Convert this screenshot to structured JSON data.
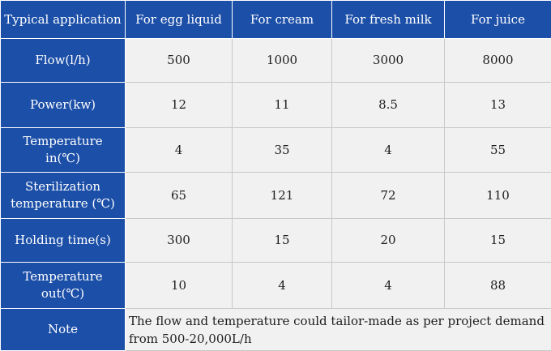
{
  "table": {
    "header": {
      "label": "Typical application",
      "columns": [
        "For egg liquid",
        "For cream",
        "For fresh milk",
        "For juice"
      ]
    },
    "rows": [
      {
        "label": "Flow(l/h)",
        "values": [
          "500",
          "1000",
          "3000",
          "8000"
        ]
      },
      {
        "label": "Power(kw)",
        "values": [
          "12",
          "11",
          "8.5",
          "13"
        ]
      },
      {
        "label": "Temperature in(℃)",
        "values": [
          "4",
          "35",
          "4",
          "55"
        ]
      },
      {
        "label_lines": [
          "Sterilization",
          "temperature (℃)"
        ],
        "values": [
          "65",
          "121",
          "72",
          "110"
        ]
      },
      {
        "label": "Holding time(s)",
        "values": [
          "300",
          "15",
          "20",
          "15"
        ]
      },
      {
        "label_lines": [
          "Temperature",
          "out(℃)"
        ],
        "values": [
          "10",
          "4",
          "4",
          "88"
        ]
      }
    ],
    "note": {
      "label": "Note",
      "lines": [
        "The flow and temperature could tailor-made as per project demand",
        "from 500-20,000L/h"
      ]
    }
  },
  "colors": {
    "header_blue": "#1c4fa8",
    "cell_gray": "#f1f1f1",
    "text_dark": "#1e1e1e"
  }
}
